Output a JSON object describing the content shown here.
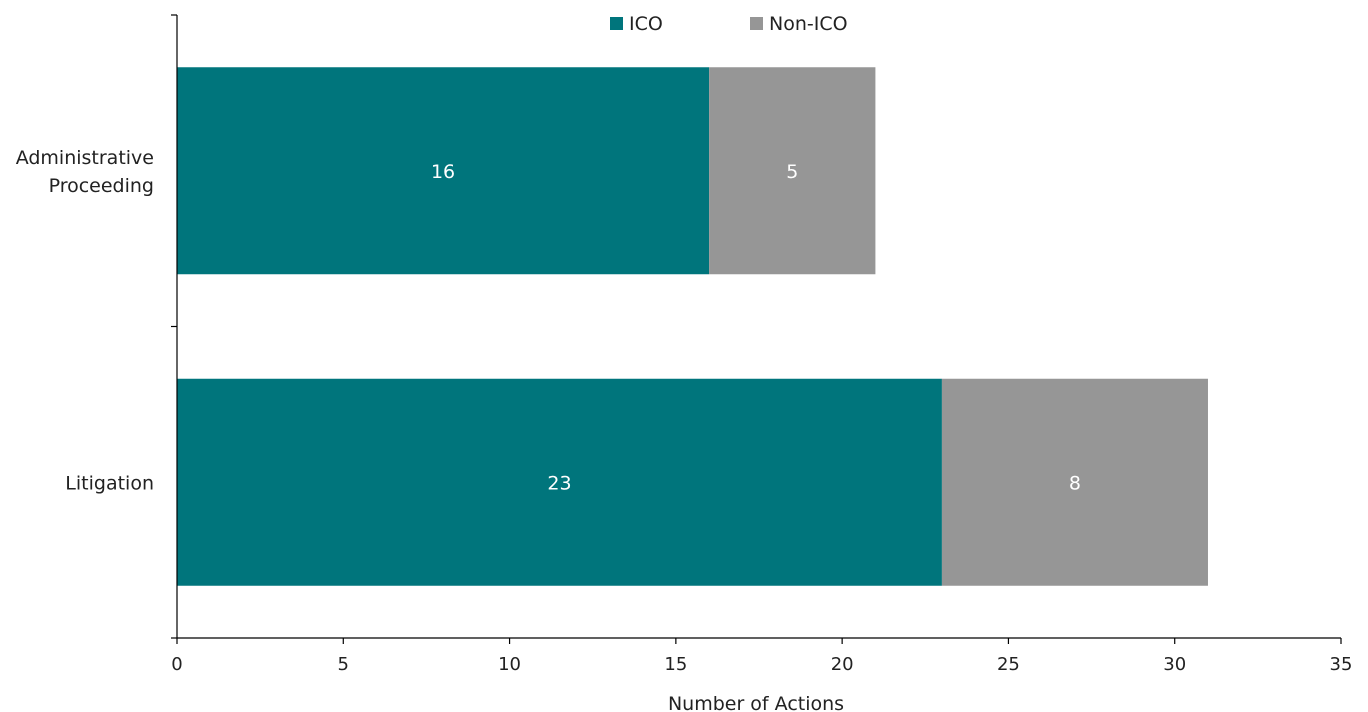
{
  "chart_data": {
    "type": "bar",
    "orientation": "horizontal",
    "stacked": true,
    "categories": [
      [
        "Administrative",
        "Proceeding"
      ],
      [
        "Litigation"
      ]
    ],
    "series": [
      {
        "name": "ICO",
        "values": [
          16,
          23
        ],
        "color": "#00757c"
      },
      {
        "name": "Non-ICO",
        "values": [
          5,
          8
        ],
        "color": "#969696"
      }
    ],
    "data_labels": true,
    "xlabel": "Number of Actions",
    "ylabel": "",
    "xlim": [
      0,
      35
    ],
    "xticks": [
      "0",
      "5",
      "10",
      "15",
      "20",
      "25",
      "30",
      "35"
    ],
    "grid": false,
    "legend_position": "top"
  }
}
